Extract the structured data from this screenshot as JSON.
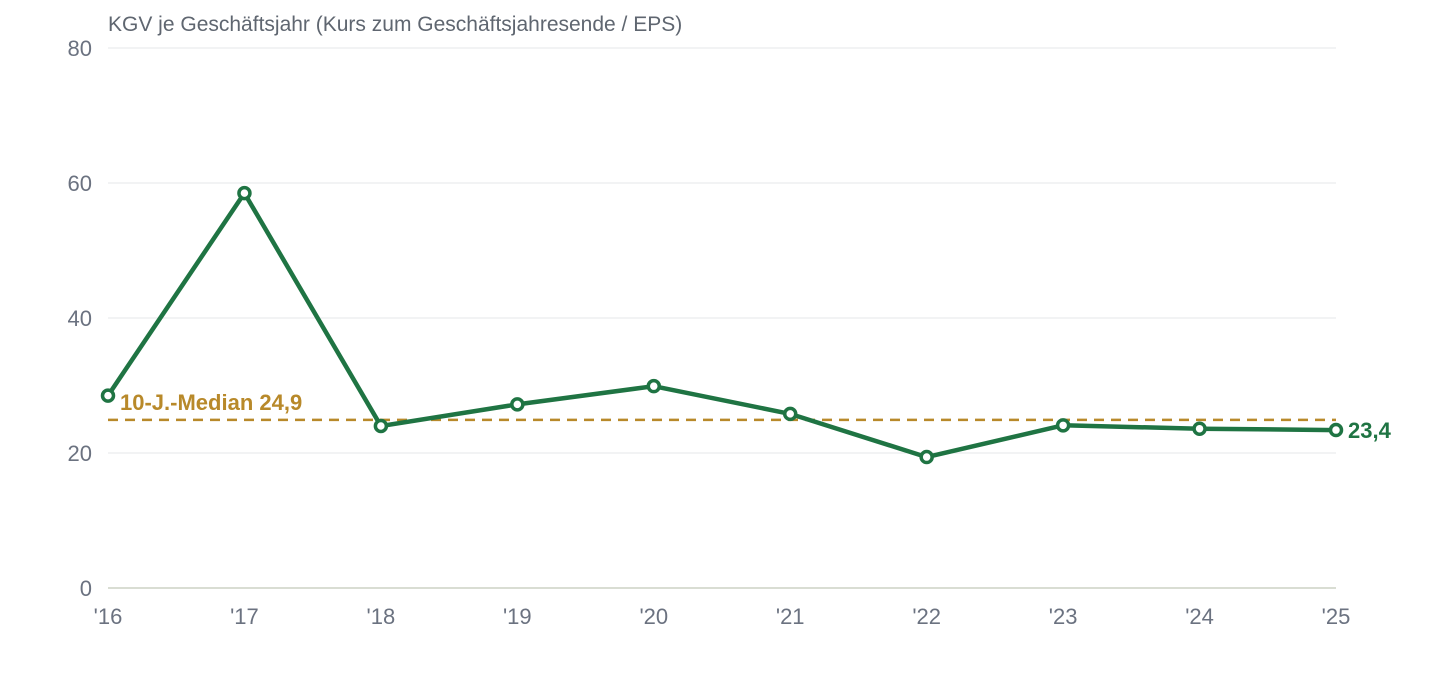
{
  "chart_data": {
    "type": "line",
    "title": "KGV je Geschäftsjahr (Kurs zum Geschäftsjahresende / EPS)",
    "categories": [
      "'16",
      "'17",
      "'18",
      "'19",
      "'20",
      "'21",
      "'22",
      "'23",
      "'24",
      "'25"
    ],
    "series": [
      {
        "values": [
          28.5,
          58.5,
          24.0,
          27.2,
          29.9,
          25.8,
          19.4,
          24.1,
          23.6,
          23.4
        ]
      }
    ],
    "y_ticks": [
      0,
      20,
      40,
      60,
      80
    ],
    "ylim": [
      0,
      80
    ],
    "xlabel": "",
    "ylabel": "",
    "grid": true,
    "median": {
      "value": 24.9,
      "label": "10-J.-Median 24,9"
    },
    "end_label": "23,4",
    "colors": {
      "series": "#1f7443",
      "median": "#b8892a",
      "grid": "#e5e7ea",
      "text": "#6b7280"
    }
  }
}
